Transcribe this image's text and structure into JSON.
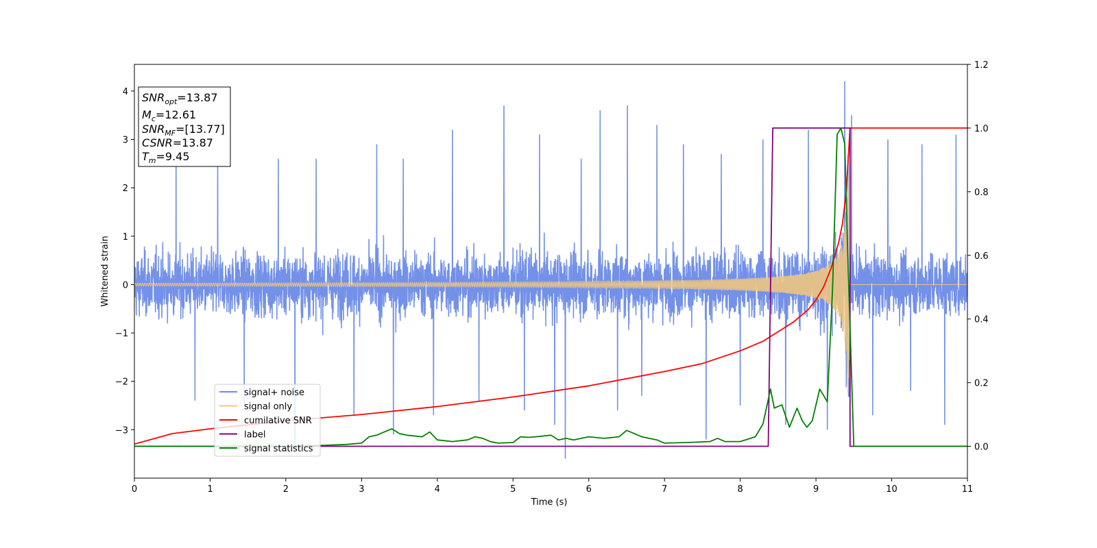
{
  "chart_data": {
    "type": "line",
    "xlabel": "Time (s)",
    "ylabel": "Whitened strain",
    "xlim": [
      0,
      11
    ],
    "ylim": [
      -4,
      4.55
    ],
    "y2lim": [
      -0.1,
      1.2
    ],
    "x_ticks": [
      0,
      1,
      2,
      3,
      4,
      5,
      6,
      7,
      8,
      9,
      10,
      11
    ],
    "y_ticks": [
      -3,
      -2,
      -1,
      0,
      1,
      2,
      3,
      4
    ],
    "y_tick_labels": [
      "−3",
      "−2",
      "−1",
      "0",
      "1",
      "2",
      "3",
      "4"
    ],
    "y2_ticks": [
      0.0,
      0.2,
      0.4,
      0.6,
      0.8,
      1.0,
      1.2
    ],
    "y2_tick_labels": [
      "0.0",
      "0.2",
      "0.4",
      "0.6",
      "0.8",
      "1.0",
      "1.2"
    ],
    "grid": false,
    "legend_position": "lower-left",
    "info_box": [
      {
        "var": "SNR",
        "sub": "opt",
        "value": "=13.87"
      },
      {
        "var": "M",
        "sub": "c",
        "value": "=12.61"
      },
      {
        "var": "SNR",
        "sub": "MF",
        "value": "=[13.77]"
      },
      {
        "var": "CSNR",
        "sub": "",
        "value": "=13.87"
      },
      {
        "var": "T",
        "sub": "m",
        "value": "=9.45"
      }
    ],
    "series": [
      {
        "name": "signal+ noise",
        "axis": "left",
        "color": "#6b8be8",
        "description_values": {
          "typical_range": [
            -2.0,
            2.4
          ],
          "max": 4.2,
          "min": -3.6,
          "max_at": 9.38,
          "min_at": 5.69
        },
        "spikes": [
          [
            0.55,
            2.9
          ],
          [
            0.8,
            -2.4
          ],
          [
            1.1,
            2.7
          ],
          [
            1.45,
            -2.5
          ],
          [
            1.9,
            2.6
          ],
          [
            2.12,
            -3.4
          ],
          [
            2.4,
            2.6
          ],
          [
            2.9,
            -2.7
          ],
          [
            3.2,
            2.9
          ],
          [
            3.42,
            -3.1
          ],
          [
            3.55,
            2.6
          ],
          [
            3.95,
            -2.7
          ],
          [
            4.2,
            3.2
          ],
          [
            4.55,
            -2.4
          ],
          [
            4.88,
            3.7
          ],
          [
            5.15,
            -2.6
          ],
          [
            5.35,
            3.1
          ],
          [
            5.55,
            -2.9
          ],
          [
            5.69,
            -3.6
          ],
          [
            5.9,
            2.6
          ],
          [
            6.15,
            3.6
          ],
          [
            6.38,
            -2.6
          ],
          [
            6.51,
            3.7
          ],
          [
            6.7,
            -2.3
          ],
          [
            6.9,
            3.3
          ],
          [
            7.25,
            2.9
          ],
          [
            7.55,
            -3.2
          ],
          [
            7.75,
            2.7
          ],
          [
            8.0,
            -2.5
          ],
          [
            8.3,
            3.0
          ],
          [
            8.6,
            -2.9
          ],
          [
            8.9,
            3.2
          ],
          [
            9.15,
            -3.0
          ],
          [
            9.38,
            4.2
          ],
          [
            9.47,
            3.5
          ],
          [
            9.75,
            -2.7
          ],
          [
            9.95,
            3.0
          ],
          [
            10.25,
            -2.2
          ],
          [
            10.4,
            2.9
          ],
          [
            10.7,
            -2.9
          ],
          [
            10.85,
            3.1
          ]
        ]
      },
      {
        "name": "signal only",
        "axis": "left",
        "color": "#f5c87a",
        "merger_time": 9.45,
        "amplitude_start": 0.03,
        "amplitude_peak": 2.3
      },
      {
        "name": "cumilative SNR",
        "axis": "right",
        "color": "#ff0000",
        "x": [
          0,
          0.5,
          1,
          2,
          3,
          4,
          5,
          6,
          7,
          7.5,
          8,
          8.3,
          8.5,
          8.7,
          8.9,
          9.0,
          9.1,
          9.2,
          9.3,
          9.35,
          9.4,
          9.45,
          9.5,
          11
        ],
        "y": [
          0.007,
          0.04,
          0.055,
          0.08,
          0.1,
          0.125,
          0.155,
          0.19,
          0.235,
          0.26,
          0.3,
          0.33,
          0.36,
          0.39,
          0.43,
          0.46,
          0.5,
          0.56,
          0.64,
          0.7,
          0.8,
          1.0,
          1.0,
          1.0
        ]
      },
      {
        "name": "label",
        "axis": "right",
        "color": "#800080",
        "x": [
          0,
          8.37,
          8.43,
          9.45,
          9.45,
          11
        ],
        "y": [
          0,
          0,
          1,
          1,
          0,
          0
        ]
      },
      {
        "name": "signal statistics",
        "axis": "right",
        "color": "#008000",
        "x": [
          0,
          1.0,
          2.0,
          2.5,
          2.8,
          3.0,
          3.1,
          3.2,
          3.3,
          3.4,
          3.5,
          3.6,
          3.8,
          3.9,
          4.0,
          4.2,
          4.4,
          4.5,
          4.6,
          4.7,
          4.8,
          5.0,
          5.1,
          5.2,
          5.3,
          5.5,
          5.6,
          5.7,
          5.8,
          6.0,
          6.2,
          6.4,
          6.5,
          6.7,
          6.9,
          7.0,
          7.3,
          7.6,
          7.7,
          7.8,
          8.0,
          8.2,
          8.3,
          8.4,
          8.45,
          8.55,
          8.65,
          8.75,
          8.82,
          8.88,
          8.95,
          9.05,
          9.15,
          9.22,
          9.28,
          9.33,
          9.38,
          9.42,
          9.5,
          11
        ],
        "y": [
          0.0,
          0.0,
          0.0,
          0.003,
          0.006,
          0.01,
          0.03,
          0.035,
          0.045,
          0.055,
          0.04,
          0.035,
          0.03,
          0.045,
          0.02,
          0.015,
          0.02,
          0.03,
          0.025,
          0.015,
          0.01,
          0.012,
          0.03,
          0.028,
          0.03,
          0.035,
          0.02,
          0.025,
          0.02,
          0.03,
          0.025,
          0.03,
          0.05,
          0.03,
          0.02,
          0.01,
          0.012,
          0.015,
          0.025,
          0.015,
          0.015,
          0.03,
          0.07,
          0.18,
          0.12,
          0.13,
          0.06,
          0.12,
          0.08,
          0.06,
          0.08,
          0.18,
          0.14,
          0.5,
          0.98,
          1.0,
          0.95,
          0.6,
          0.0,
          0.0
        ]
      }
    ]
  }
}
